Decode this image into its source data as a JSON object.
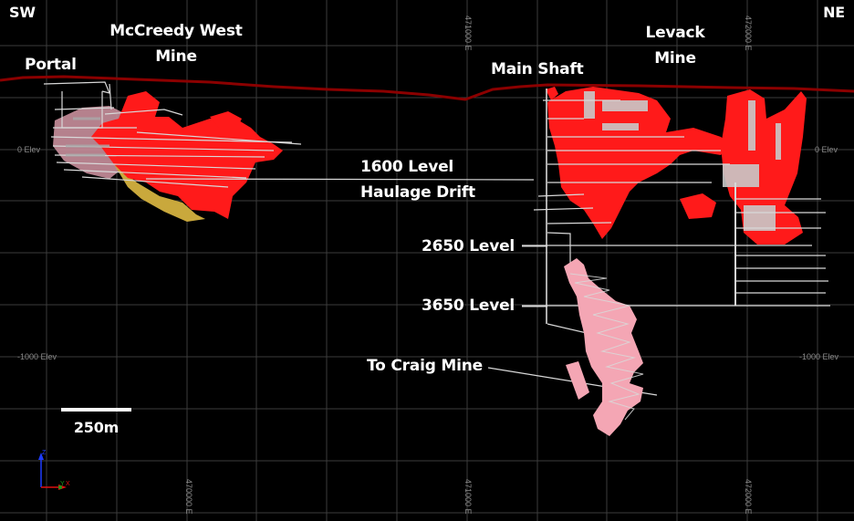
{
  "orientation": {
    "left": "SW",
    "right": "NE"
  },
  "labels": {
    "mccreedy_line1": "McCreedy West",
    "mccreedy_line2": "Mine",
    "portal": "Portal",
    "main_shaft": "Main Shaft",
    "levack_line1": "Levack",
    "levack_line2": "Mine",
    "haulage_line1": "1600 Level",
    "haulage_line2": "Haulage Drift",
    "level_2650": "2650 Level",
    "level_3650": "3650 Level",
    "craig": "To Craig Mine"
  },
  "scale_bar": {
    "label": "250m"
  },
  "grid": {
    "color": "#3c3c3c",
    "vertical_x": [
      51,
      128,
      205,
      281,
      358,
      435,
      512,
      589,
      665,
      742,
      819,
      896
    ],
    "horizontal_y": [
      50,
      107,
      164,
      220,
      277,
      334,
      391,
      448,
      505,
      562
    ],
    "elevation_labels": {
      "zero_left": "0 Elev",
      "zero_right": "0 Elev",
      "minus1000_left": "-1000 Elev",
      "minus1000_right": "-1000 Elev"
    },
    "easting_labels": {
      "e470000_bottom": "470000 E",
      "e471000_top": "471000 E",
      "e471000_bottom": "471000 E",
      "e472000_top": "472000 E",
      "e472000_bottom": "472000 E"
    }
  },
  "axes_triad": {
    "z": "Z",
    "y": "Y",
    "x": "X"
  },
  "colors": {
    "background": "#000000",
    "surface_line": "#8b0000",
    "orebody_red": "#ff1a1a",
    "orebody_pink": "#f4a6b4",
    "orebody_yellow": "#d8b84a",
    "workings": "#d8d8d8",
    "text": "#ffffff"
  }
}
